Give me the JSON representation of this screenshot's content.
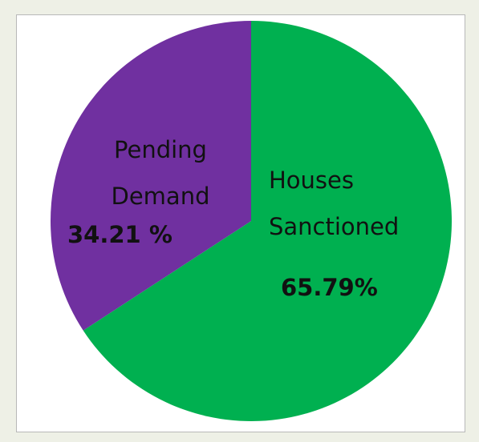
{
  "chart_data": {
    "type": "pie",
    "categories": [
      "Houses Sanctioned",
      "Pending Demand"
    ],
    "values": [
      65.79,
      34.21
    ],
    "value_labels": [
      "65.79%",
      "34.21 %"
    ],
    "colors": [
      "#00b050",
      "#7030a0"
    ]
  }
}
